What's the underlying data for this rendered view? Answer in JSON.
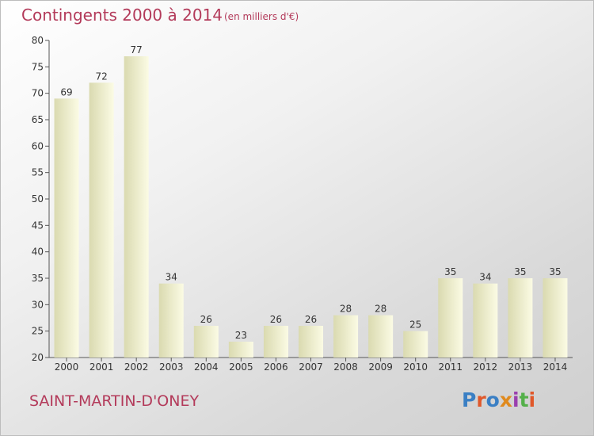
{
  "header": {
    "title": "Contingents 2000 à 2014",
    "subtitle": "(en milliers d'€)"
  },
  "footer": {
    "place": "SAINT-MARTIN-D'ONEY",
    "logo": "Proxiti",
    "logo_colors": [
      "#3a7fc4",
      "#e0582a",
      "#3a7fc4",
      "#e08a1e",
      "#9a3fae",
      "#54b04a",
      "#e0582a"
    ]
  },
  "colors": {
    "bar_light": "#fbfbe4",
    "bar_dark": "#dadab0",
    "text_accent": "#b33a5a"
  },
  "chart_data": {
    "type": "bar",
    "categories": [
      "2000",
      "2001",
      "2002",
      "2003",
      "2004",
      "2005",
      "2006",
      "2007",
      "2008",
      "2009",
      "2010",
      "2011",
      "2012",
      "2013",
      "2014"
    ],
    "values": [
      69,
      72,
      77,
      34,
      26,
      23,
      26,
      26,
      28,
      28,
      25,
      35,
      34,
      35,
      35
    ],
    "ylim": [
      20,
      80
    ],
    "yticks": [
      20,
      25,
      30,
      35,
      40,
      45,
      50,
      55,
      60,
      65,
      70,
      75,
      80
    ],
    "grid": false,
    "data_labels": true
  }
}
